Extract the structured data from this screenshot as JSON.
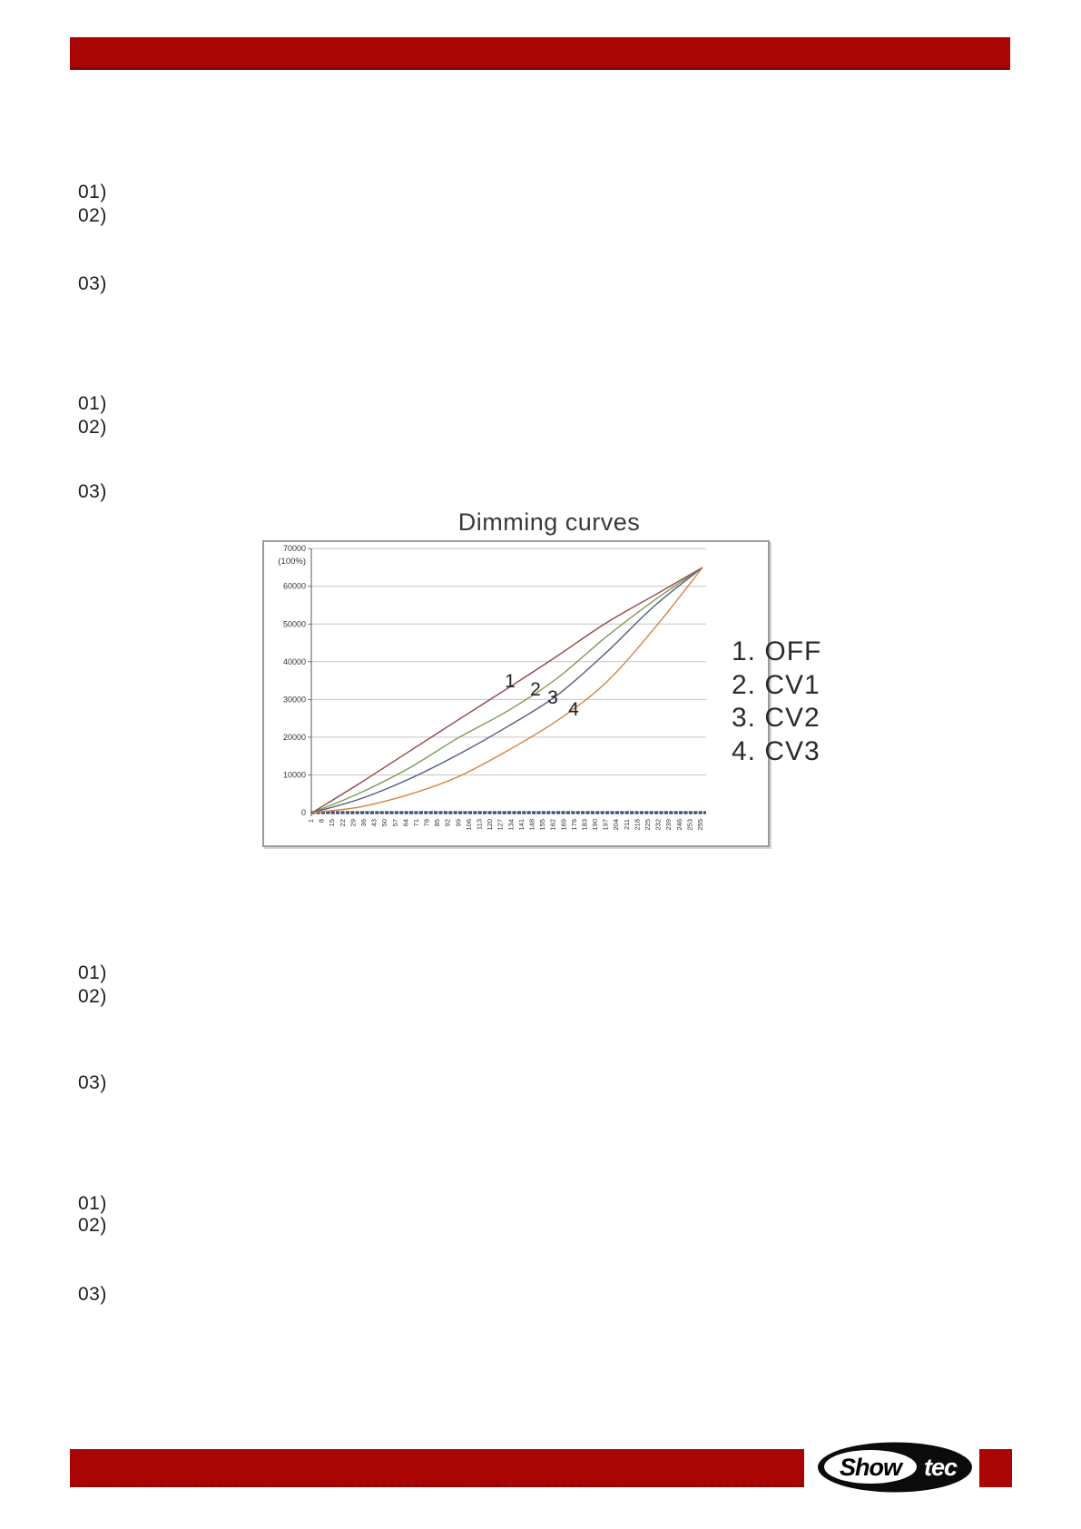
{
  "header": {
    "bar_color": "#a90505"
  },
  "list_groups": [
    {
      "items": [
        {
          "label": "01)"
        },
        {
          "label": "02)"
        },
        {
          "label": "03)"
        }
      ]
    },
    {
      "items": [
        {
          "label": "01)"
        },
        {
          "label": "02)"
        },
        {
          "label": "03)"
        }
      ]
    },
    {
      "items": [
        {
          "label": "01)"
        },
        {
          "label": "02)"
        },
        {
          "label": "03)"
        }
      ]
    },
    {
      "items": [
        {
          "label": "01)"
        },
        {
          "label": "02)"
        },
        {
          "label": "03)"
        }
      ]
    }
  ],
  "chart_data": {
    "type": "line",
    "title": "Dimming curves",
    "grid": true,
    "legend_position": "right",
    "x": [
      1,
      32,
      64,
      96,
      128,
      160,
      192,
      224,
      255
    ],
    "series": [
      {
        "name": "1. OFF",
        "curve_label": "1",
        "color": "#9a4449",
        "values": [
          0,
          7800,
          16200,
          24600,
          32900,
          41400,
          50200,
          57700,
          65000
        ]
      },
      {
        "name": "2. CV1",
        "curve_label": "2",
        "color": "#7d9a53",
        "values": [
          0,
          5200,
          11800,
          19800,
          26900,
          35500,
          46500,
          56400,
          65000
        ]
      },
      {
        "name": "3. CV2",
        "curve_label": "3",
        "color": "#4e5d7e",
        "values": [
          0,
          3600,
          8900,
          15400,
          22800,
          31000,
          42300,
          54900,
          65000
        ]
      },
      {
        "name": "4. CV3",
        "curve_label": "4",
        "color": "#d9813f",
        "values": [
          0,
          1500,
          4800,
          9500,
          16400,
          24300,
          34400,
          49000,
          65000
        ]
      }
    ],
    "legend": [
      "1. OFF",
      "2. CV1",
      "3. CV2",
      "4. CV3"
    ],
    "y_axis": {
      "min": 0,
      "max": 70000,
      "tick_step": 10000,
      "tick_labels": [
        "70000",
        "60000",
        "50000",
        "40000",
        "30000",
        "20000",
        "10000",
        "0"
      ],
      "sub_label": "(100%)"
    },
    "x_axis": {
      "min": 1,
      "max": 255,
      "tick_labels": [
        "1",
        "8",
        "15",
        "22",
        "29",
        "36",
        "43",
        "50",
        "57",
        "64",
        "71",
        "78",
        "85",
        "92",
        "99",
        "106",
        "113",
        "120",
        "127",
        "134",
        "141",
        "148",
        "155",
        "162",
        "169",
        "176",
        "183",
        "190",
        "197",
        "204",
        "211",
        "218",
        "225",
        "232",
        "239",
        "246",
        "253",
        "255"
      ]
    }
  },
  "footer": {
    "bar_color": "#a90505",
    "logo": {
      "left": "Show",
      "right": "tec",
      "registered": "®"
    }
  }
}
